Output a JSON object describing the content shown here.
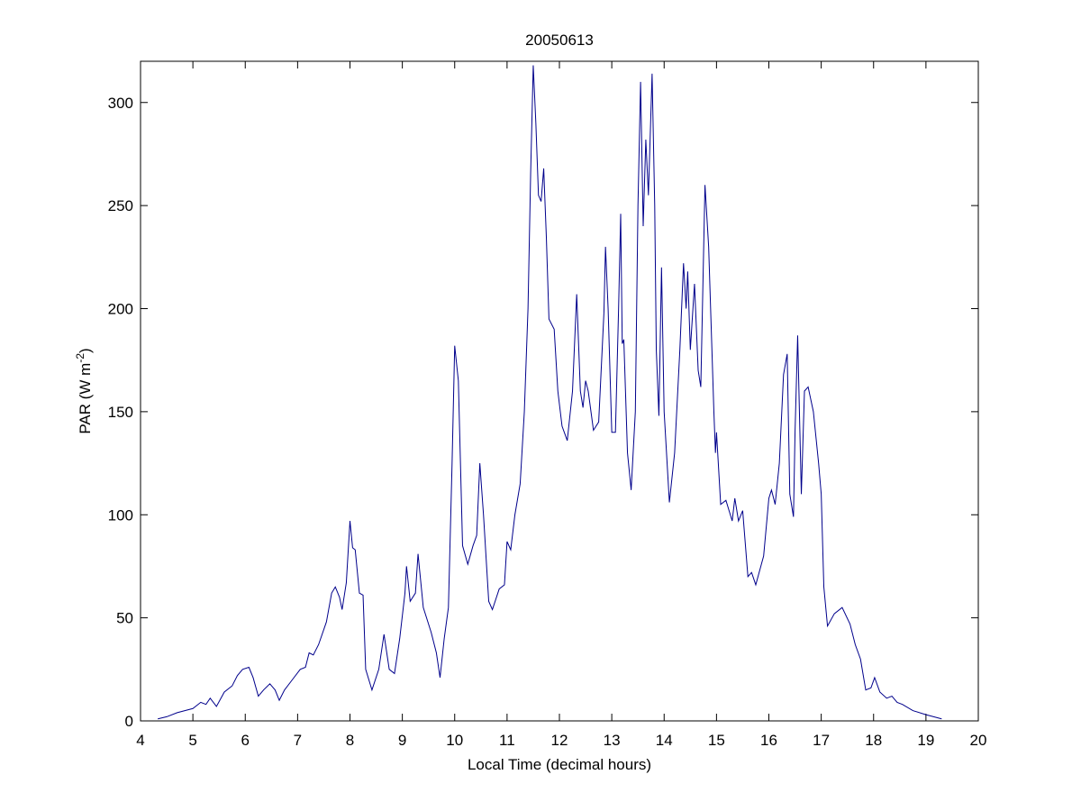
{
  "chart_data": {
    "type": "line",
    "title": "20050613",
    "xlabel": "Local Time (decimal hours)",
    "ylabel": {
      "text": "PAR (W m",
      "sup": "-2",
      "end": ")"
    },
    "color": "#00008b",
    "xlim": [
      4,
      20
    ],
    "ylim": [
      0,
      320
    ],
    "xticks": [
      4,
      5,
      6,
      7,
      8,
      9,
      10,
      11,
      12,
      13,
      14,
      15,
      16,
      17,
      18,
      19,
      20
    ],
    "yticks": [
      0,
      50,
      100,
      150,
      200,
      250,
      300
    ],
    "x": [
      4.33,
      4.5,
      4.7,
      5.0,
      5.15,
      5.25,
      5.33,
      5.45,
      5.6,
      5.75,
      5.85,
      5.95,
      6.07,
      6.15,
      6.25,
      6.35,
      6.47,
      6.57,
      6.65,
      6.75,
      6.9,
      7.05,
      7.15,
      7.22,
      7.3,
      7.4,
      7.55,
      7.65,
      7.72,
      7.8,
      7.85,
      7.93,
      8.0,
      8.05,
      8.1,
      8.18,
      8.25,
      8.3,
      8.42,
      8.55,
      8.65,
      8.75,
      8.85,
      8.95,
      9.05,
      9.08,
      9.15,
      9.25,
      9.3,
      9.4,
      9.55,
      9.65,
      9.72,
      9.8,
      9.88,
      9.95,
      10.0,
      10.07,
      10.15,
      10.25,
      10.35,
      10.42,
      10.48,
      10.55,
      10.65,
      10.72,
      10.85,
      10.95,
      11.0,
      11.07,
      11.15,
      11.25,
      11.33,
      11.4,
      11.45,
      11.5,
      11.55,
      11.6,
      11.65,
      11.7,
      11.75,
      11.8,
      11.9,
      11.97,
      12.05,
      12.15,
      12.25,
      12.33,
      12.4,
      12.45,
      12.5,
      12.55,
      12.65,
      12.75,
      12.85,
      12.88,
      12.93,
      13.0,
      13.07,
      13.13,
      13.17,
      13.2,
      13.23,
      13.3,
      13.37,
      13.45,
      13.5,
      13.55,
      13.6,
      13.65,
      13.7,
      13.77,
      13.82,
      13.85,
      13.9,
      13.95,
      14.0,
      14.1,
      14.2,
      14.3,
      14.37,
      14.42,
      14.45,
      14.5,
      14.58,
      14.65,
      14.7,
      14.78,
      14.85,
      14.95,
      14.98,
      15.0,
      15.08,
      15.18,
      15.3,
      15.35,
      15.42,
      15.5,
      15.6,
      15.67,
      15.75,
      15.9,
      16.0,
      16.05,
      16.12,
      16.2,
      16.28,
      16.35,
      16.4,
      16.47,
      16.5,
      16.55,
      16.62,
      16.68,
      16.75,
      16.85,
      16.95,
      17.0,
      17.05,
      17.12,
      17.25,
      17.4,
      17.55,
      17.65,
      17.75,
      17.85,
      17.95,
      18.02,
      18.12,
      18.25,
      18.35,
      18.45,
      18.55,
      18.75,
      19.0,
      19.3
    ],
    "values": [
      1,
      2,
      4,
      6,
      9,
      8,
      11,
      7,
      14,
      17,
      22,
      25,
      26,
      21,
      12,
      15,
      18,
      15,
      10,
      15,
      20,
      25,
      26,
      33,
      32,
      37,
      48,
      62,
      65,
      60,
      54,
      67,
      97,
      84,
      83,
      62,
      61,
      25,
      15,
      25,
      42,
      25,
      23,
      40,
      62,
      75,
      58,
      62,
      81,
      55,
      43,
      33,
      21,
      40,
      55,
      125,
      182,
      165,
      85,
      76,
      85,
      90,
      125,
      100,
      58,
      54,
      64,
      66,
      87,
      83,
      100,
      115,
      150,
      200,
      265,
      318,
      290,
      255,
      252,
      268,
      235,
      195,
      190,
      160,
      143,
      136,
      160,
      207,
      160,
      152,
      165,
      160,
      141,
      145,
      198,
      230,
      200,
      140,
      140,
      200,
      246,
      183,
      185,
      130,
      112,
      150,
      250,
      310,
      240,
      282,
      255,
      314,
      250,
      180,
      148,
      220,
      150,
      106,
      130,
      180,
      222,
      200,
      218,
      180,
      212,
      170,
      162,
      260,
      230,
      150,
      130,
      140,
      105,
      107,
      97,
      108,
      97,
      102,
      70,
      72,
      66,
      80,
      108,
      112,
      105,
      125,
      168,
      178,
      110,
      99,
      140,
      187,
      110,
      160,
      162,
      150,
      125,
      110,
      65,
      46,
      52,
      55,
      47,
      37,
      30,
      15,
      16,
      21,
      14,
      11,
      12,
      9,
      8,
      5,
      3,
      1
    ]
  }
}
